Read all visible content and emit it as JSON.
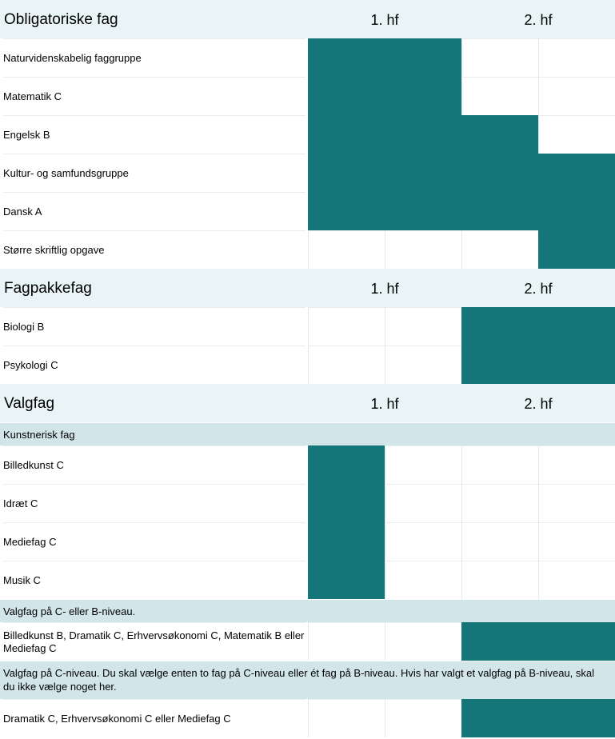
{
  "colors": {
    "bar": "#157679",
    "section_bg": "#e8f4f6",
    "subheader_bg": "#d2e5e9"
  },
  "sections": [
    {
      "title": "Obligatoriske fag",
      "col1": "1. hf",
      "col2": "2. hf",
      "rows": [
        {
          "kind": "subject",
          "name": "Naturvidenskabelig faggruppe",
          "bar_quarters": [
            1,
            2
          ]
        },
        {
          "kind": "subject",
          "name": "Matematik C",
          "bar_quarters": [
            1,
            2
          ]
        },
        {
          "kind": "subject",
          "name": "Engelsk B",
          "bar_quarters": [
            1,
            3
          ]
        },
        {
          "kind": "subject",
          "name": "Kultur- og samfundsgruppe",
          "bar_quarters": [
            1,
            4
          ]
        },
        {
          "kind": "subject",
          "name": "Dansk A",
          "bar_quarters": [
            1,
            4
          ]
        },
        {
          "kind": "subject",
          "name": "Større skriftlig opgave",
          "bar_quarters": [
            4,
            4
          ]
        }
      ]
    },
    {
      "title": "Fagpakkefag",
      "col1": "1. hf",
      "col2": "2. hf",
      "rows": [
        {
          "kind": "subject",
          "name": "Biologi B",
          "bar_quarters": [
            3,
            4
          ]
        },
        {
          "kind": "subject",
          "name": "Psykologi C",
          "bar_quarters": [
            3,
            4
          ]
        }
      ]
    },
    {
      "title": "Valgfag",
      "col1": "1. hf",
      "col2": "2. hf",
      "rows": [
        {
          "kind": "group",
          "text": "Kunstnerisk fag"
        },
        {
          "kind": "subject",
          "name": "Billedkunst C",
          "bar_quarters": [
            1,
            1
          ]
        },
        {
          "kind": "subject",
          "name": "Idræt C",
          "bar_quarters": [
            1,
            1
          ]
        },
        {
          "kind": "subject",
          "name": "Mediefag C",
          "bar_quarters": [
            1,
            1
          ]
        },
        {
          "kind": "subject",
          "name": "Musik C",
          "bar_quarters": [
            1,
            1
          ]
        },
        {
          "kind": "group",
          "text": "Valgfag på C- eller B-niveau."
        },
        {
          "kind": "subject",
          "name": "Billedkunst B, Dramatik C, Erhvervsøkonomi C, Matematik B eller Mediefag C",
          "bar_quarters": [
            3,
            4
          ]
        },
        {
          "kind": "group",
          "text": "Valgfag på C-niveau. Du skal vælge enten to fag på C-niveau eller ét fag på B-niveau. Hvis har valgt et valgfag på B-niveau, skal du ikke vælge noget her."
        },
        {
          "kind": "subject",
          "name": "Dramatik C, Erhvervsøkonomi C eller Mediefag C",
          "bar_quarters": [
            3,
            4
          ]
        }
      ]
    }
  ]
}
